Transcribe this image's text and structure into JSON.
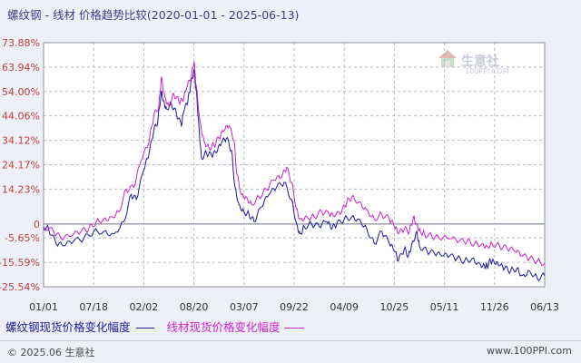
{
  "title": "螺纹钢 - 线材 价格趋势比较(2020-01-01 - 2025-06-13)",
  "watermark": {
    "name": "生意社",
    "url": "100PPI.COM"
  },
  "legend": {
    "series1": "螺纹钢现货价格变化幅度",
    "series2": "线材现货价格变化幅度"
  },
  "footer": {
    "copyright": "© 2025.06 生意社",
    "site": "www.100PPI.com"
  },
  "colors": {
    "series1": "#1a1aa0",
    "series2": "#cc22cc",
    "axis_tick": "#c04040",
    "grid": "#b8b8c8"
  },
  "chart_data": {
    "type": "line",
    "ylim": [
      -25.54,
      73.88
    ],
    "yticks": [
      "73.88%",
      "63.94%",
      "54.00%",
      "44.06%",
      "34.12%",
      "24.17%",
      "14.23%",
      "0",
      "-5.65%",
      "-15.59%",
      "-25.54%"
    ],
    "ytick_values": [
      73.88,
      63.94,
      54.0,
      44.06,
      34.12,
      24.17,
      14.23,
      0,
      -5.65,
      -15.59,
      -25.54
    ],
    "xticks": [
      "01/01",
      "07/18",
      "02/02",
      "08/20",
      "03/07",
      "09/22",
      "04/09",
      "10/25",
      "05/11",
      "11/26",
      "06/13"
    ],
    "grid": true,
    "series": [
      {
        "name": "螺纹钢现货价格变化幅度",
        "points": [
          [
            0,
            -1
          ],
          [
            0.1,
            -2
          ],
          [
            0.25,
            -8
          ],
          [
            0.4,
            -9
          ],
          [
            0.6,
            -7
          ],
          [
            0.8,
            -6
          ],
          [
            1.0,
            -3
          ],
          [
            1.2,
            -3
          ],
          [
            1.4,
            -4
          ],
          [
            1.6,
            1
          ],
          [
            1.75,
            12
          ],
          [
            1.85,
            10
          ],
          [
            2.0,
            22
          ],
          [
            2.1,
            28
          ],
          [
            2.2,
            38
          ],
          [
            2.28,
            42
          ],
          [
            2.35,
            54
          ],
          [
            2.4,
            50
          ],
          [
            2.45,
            47
          ],
          [
            2.55,
            49
          ],
          [
            2.65,
            45
          ],
          [
            2.75,
            40
          ],
          [
            2.8,
            46
          ],
          [
            2.88,
            50
          ],
          [
            2.93,
            56
          ],
          [
            3.0,
            63
          ],
          [
            3.05,
            54
          ],
          [
            3.1,
            40
          ],
          [
            3.15,
            27
          ],
          [
            3.25,
            29
          ],
          [
            3.35,
            28
          ],
          [
            3.45,
            29
          ],
          [
            3.55,
            33
          ],
          [
            3.65,
            35
          ],
          [
            3.75,
            30
          ],
          [
            3.82,
            15
          ],
          [
            3.9,
            8
          ],
          [
            4.0,
            5
          ],
          [
            4.1,
            4
          ],
          [
            4.2,
            1
          ],
          [
            4.35,
            7
          ],
          [
            4.5,
            12
          ],
          [
            4.65,
            15
          ],
          [
            4.8,
            17
          ],
          [
            4.95,
            10
          ],
          [
            5.05,
            0
          ],
          [
            5.12,
            -4
          ],
          [
            5.2,
            -1
          ],
          [
            5.35,
            0
          ],
          [
            5.5,
            -1
          ],
          [
            5.65,
            1
          ],
          [
            5.75,
            -2
          ],
          [
            5.85,
            0
          ],
          [
            6.0,
            2
          ],
          [
            6.15,
            3
          ],
          [
            6.3,
            2
          ],
          [
            6.45,
            -2
          ],
          [
            6.6,
            -8
          ],
          [
            6.75,
            -3
          ],
          [
            6.9,
            -8
          ],
          [
            7.0,
            -11
          ],
          [
            7.08,
            -15
          ],
          [
            7.2,
            -10
          ],
          [
            7.28,
            -13
          ],
          [
            7.35,
            -8
          ],
          [
            7.45,
            -3
          ],
          [
            7.5,
            -9
          ],
          [
            7.65,
            -11
          ],
          [
            7.8,
            -12
          ],
          [
            7.95,
            -13
          ],
          [
            8.1,
            -13
          ],
          [
            8.25,
            -14
          ],
          [
            8.4,
            -15
          ],
          [
            8.55,
            -14
          ],
          [
            8.7,
            -16
          ],
          [
            8.8,
            -17
          ],
          [
            8.85,
            -17
          ],
          [
            8.92,
            -15
          ],
          [
            9.0,
            -16
          ],
          [
            9.1,
            -17
          ],
          [
            9.2,
            -18
          ],
          [
            9.32,
            -19
          ],
          [
            9.45,
            -18
          ],
          [
            9.55,
            -21
          ],
          [
            9.7,
            -19
          ],
          [
            9.85,
            -22
          ],
          [
            10.0,
            -21
          ]
        ]
      },
      {
        "name": "线材现货价格变化幅度",
        "points": [
          [
            0,
            -1
          ],
          [
            0.2,
            -3
          ],
          [
            0.35,
            -6
          ],
          [
            0.55,
            -5
          ],
          [
            0.75,
            -3
          ],
          [
            0.9,
            -2
          ],
          [
            1.05,
            1
          ],
          [
            1.2,
            2
          ],
          [
            1.35,
            3
          ],
          [
            1.5,
            5
          ],
          [
            1.65,
            14
          ],
          [
            1.8,
            15
          ],
          [
            1.95,
            26
          ],
          [
            2.1,
            33
          ],
          [
            2.2,
            44
          ],
          [
            2.3,
            48
          ],
          [
            2.35,
            60
          ],
          [
            2.42,
            52
          ],
          [
            2.5,
            48
          ],
          [
            2.6,
            53
          ],
          [
            2.7,
            50
          ],
          [
            2.78,
            50
          ],
          [
            2.85,
            55
          ],
          [
            2.95,
            60
          ],
          [
            3.0,
            66
          ],
          [
            3.05,
            56
          ],
          [
            3.12,
            42
          ],
          [
            3.2,
            34
          ],
          [
            3.3,
            31
          ],
          [
            3.4,
            32
          ],
          [
            3.5,
            35
          ],
          [
            3.6,
            38
          ],
          [
            3.7,
            40
          ],
          [
            3.8,
            34
          ],
          [
            3.86,
            20
          ],
          [
            3.95,
            12
          ],
          [
            4.05,
            11
          ],
          [
            4.15,
            8
          ],
          [
            4.3,
            11
          ],
          [
            4.45,
            14
          ],
          [
            4.6,
            18
          ],
          [
            4.75,
            19
          ],
          [
            4.85,
            23
          ],
          [
            4.95,
            17
          ],
          [
            5.05,
            6
          ],
          [
            5.12,
            2
          ],
          [
            5.25,
            3
          ],
          [
            5.4,
            3
          ],
          [
            5.55,
            5
          ],
          [
            5.7,
            4
          ],
          [
            5.8,
            3
          ],
          [
            5.95,
            5
          ],
          [
            6.05,
            9
          ],
          [
            6.15,
            11
          ],
          [
            6.3,
            9
          ],
          [
            6.45,
            6
          ],
          [
            6.6,
            2
          ],
          [
            6.75,
            4
          ],
          [
            6.9,
            2
          ],
          [
            7.0,
            -1
          ],
          [
            7.08,
            -4
          ],
          [
            7.2,
            -2
          ],
          [
            7.3,
            -3
          ],
          [
            7.38,
            3
          ],
          [
            7.45,
            0
          ],
          [
            7.52,
            -3
          ],
          [
            7.6,
            -4
          ],
          [
            7.75,
            -5
          ],
          [
            7.9,
            -6
          ],
          [
            8.1,
            -6
          ],
          [
            8.3,
            -7
          ],
          [
            8.45,
            -7
          ],
          [
            8.6,
            -8
          ],
          [
            8.75,
            -8
          ],
          [
            8.85,
            -9
          ],
          [
            8.95,
            -8
          ],
          [
            9.1,
            -9
          ],
          [
            9.25,
            -10
          ],
          [
            9.4,
            -11
          ],
          [
            9.55,
            -13
          ],
          [
            9.7,
            -14
          ],
          [
            9.85,
            -15
          ],
          [
            10.0,
            -16
          ]
        ]
      }
    ]
  }
}
